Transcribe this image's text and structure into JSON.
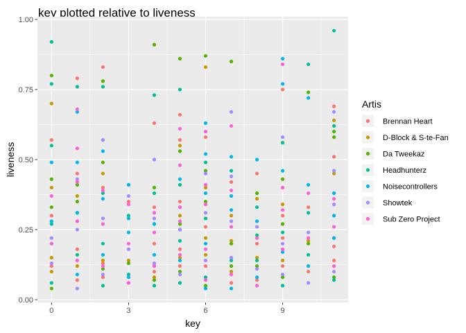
{
  "chart_data": {
    "type": "scatter",
    "title": "key plotted relative to liveness",
    "xlabel": "key",
    "ylabel": "liveness",
    "xlim": [
      -0.55,
      11.55
    ],
    "ylim": [
      -0.01,
      1.01
    ],
    "x_ticks": [
      0,
      3,
      6,
      9
    ],
    "x_tick_labels": [
      "0",
      "3",
      "6",
      "9"
    ],
    "x_minor_ticks": [
      1.5,
      4.5,
      7.5,
      10.5
    ],
    "y_ticks": [
      0.0,
      0.25,
      0.5,
      0.75,
      1.0
    ],
    "y_tick_labels": [
      "0.00",
      "0.25",
      "0.50",
      "0.75",
      "1.00"
    ],
    "y_minor_ticks": [
      0.125,
      0.375,
      0.625,
      0.875
    ],
    "grid": true,
    "legend": {
      "title": "Artis",
      "placement": "right"
    },
    "series": [
      {
        "name": "Brennan Heart",
        "color": "#F8766D",
        "points": [
          [
            0,
            0.57
          ],
          [
            0,
            0.12
          ],
          [
            0,
            0.3
          ],
          [
            1,
            0.79
          ],
          [
            1,
            0.45
          ],
          [
            1,
            0.18
          ],
          [
            1,
            0.07
          ],
          [
            2,
            0.83
          ],
          [
            2,
            0.4
          ],
          [
            2,
            0.13
          ],
          [
            2,
            0.08
          ],
          [
            3,
            0.35
          ],
          [
            3,
            0.06
          ],
          [
            4,
            0.63
          ],
          [
            4,
            0.33
          ],
          [
            4,
            0.2
          ],
          [
            4,
            0.1
          ],
          [
            5,
            0.66
          ],
          [
            5,
            0.57
          ],
          [
            5,
            0.35
          ],
          [
            5,
            0.18
          ],
          [
            5,
            0.12
          ],
          [
            6,
            0.58
          ],
          [
            6,
            0.26
          ],
          [
            6,
            0.12
          ],
          [
            7,
            0.42
          ],
          [
            7,
            0.2
          ],
          [
            7,
            0.06
          ],
          [
            8,
            0.45
          ],
          [
            8,
            0.2
          ],
          [
            8,
            0.07
          ],
          [
            9,
            0.75
          ],
          [
            9,
            0.3
          ],
          [
            9,
            0.22
          ],
          [
            9,
            0.12
          ],
          [
            10,
            0.33
          ],
          [
            10,
            0.1
          ],
          [
            11,
            0.69
          ],
          [
            11,
            0.51
          ],
          [
            11,
            0.19
          ],
          [
            11,
            0.14
          ]
        ]
      },
      {
        "name": "D-Block & S-te-Fan",
        "color": "#C49A00",
        "points": [
          [
            0,
            0.7
          ],
          [
            0,
            0.4
          ],
          [
            0,
            0.15
          ],
          [
            0,
            0.1
          ],
          [
            1,
            0.37
          ],
          [
            1,
            0.12
          ],
          [
            2,
            0.45
          ],
          [
            2,
            0.14
          ],
          [
            3,
            0.14
          ],
          [
            4,
            0.12
          ],
          [
            4,
            0.08
          ],
          [
            5,
            0.55
          ],
          [
            5,
            0.3
          ],
          [
            5,
            0.15
          ],
          [
            6,
            0.83
          ],
          [
            6,
            0.4
          ],
          [
            6,
            0.22
          ],
          [
            6,
            0.16
          ],
          [
            7,
            0.3
          ],
          [
            7,
            0.21
          ],
          [
            7,
            0.1
          ],
          [
            8,
            0.36
          ],
          [
            8,
            0.15
          ],
          [
            9,
            0.34
          ],
          [
            9,
            0.14
          ],
          [
            10,
            0.21
          ],
          [
            11,
            0.64
          ],
          [
            11,
            0.45
          ],
          [
            11,
            0.22
          ]
        ]
      },
      {
        "name": "Da Tweekaz",
        "color": "#53B400",
        "points": [
          [
            0,
            0.8
          ],
          [
            0,
            0.43
          ],
          [
            0,
            0.33
          ],
          [
            0,
            0.04
          ],
          [
            1,
            0.41
          ],
          [
            1,
            0.35
          ],
          [
            2,
            0.78
          ],
          [
            2,
            0.49
          ],
          [
            2,
            0.11
          ],
          [
            3,
            0.13
          ],
          [
            4,
            0.91
          ],
          [
            4,
            0.4
          ],
          [
            4,
            0.07
          ],
          [
            5,
            0.86
          ],
          [
            5,
            0.53
          ],
          [
            5,
            0.27
          ],
          [
            5,
            0.1
          ],
          [
            6,
            0.87
          ],
          [
            6,
            0.46
          ],
          [
            6,
            0.35
          ],
          [
            6,
            0.05
          ],
          [
            7,
            0.85
          ],
          [
            7,
            0.2
          ],
          [
            7,
            0.12
          ],
          [
            8,
            0.38
          ],
          [
            8,
            0.12
          ],
          [
            9,
            0.43
          ],
          [
            9,
            0.27
          ],
          [
            9,
            0.08
          ],
          [
            10,
            0.74
          ],
          [
            10,
            0.2
          ],
          [
            11,
            0.6
          ],
          [
            11,
            0.58
          ],
          [
            11,
            0.08
          ]
        ]
      },
      {
        "name": "Headhunterz",
        "color": "#00C094",
        "points": [
          [
            0,
            0.92
          ],
          [
            0,
            0.77
          ],
          [
            0,
            0.55
          ],
          [
            0,
            0.27
          ],
          [
            0,
            0.06
          ],
          [
            1,
            0.76
          ],
          [
            1,
            0.31
          ],
          [
            1,
            0.16
          ],
          [
            2,
            0.76
          ],
          [
            2,
            0.38
          ],
          [
            2,
            0.2
          ],
          [
            2,
            0.05
          ],
          [
            3,
            0.3
          ],
          [
            3,
            0.09
          ],
          [
            4,
            0.73
          ],
          [
            4,
            0.38
          ],
          [
            4,
            0.27
          ],
          [
            4,
            0.05
          ],
          [
            5,
            0.75
          ],
          [
            5,
            0.41
          ],
          [
            5,
            0.21
          ],
          [
            5,
            0.06
          ],
          [
            6,
            0.49
          ],
          [
            6,
            0.29
          ],
          [
            6,
            0.08
          ],
          [
            7,
            0.46
          ],
          [
            7,
            0.14
          ],
          [
            8,
            0.33
          ],
          [
            8,
            0.23
          ],
          [
            8,
            0.14
          ],
          [
            9,
            0.56
          ],
          [
            9,
            0.24
          ],
          [
            9,
            0.05
          ],
          [
            10,
            0.84
          ],
          [
            10,
            0.31
          ],
          [
            10,
            0.16
          ],
          [
            11,
            0.96
          ],
          [
            11,
            0.62
          ],
          [
            11,
            0.38
          ],
          [
            11,
            0.07
          ]
        ]
      },
      {
        "name": "Noisecontrollers",
        "color": "#00B6EB",
        "points": [
          [
            0,
            0.49
          ],
          [
            0,
            0.28
          ],
          [
            0,
            0.2
          ],
          [
            1,
            0.67
          ],
          [
            1,
            0.49
          ],
          [
            1,
            0.31
          ],
          [
            1,
            0.09
          ],
          [
            2,
            0.53
          ],
          [
            2,
            0.36
          ],
          [
            2,
            0.16
          ],
          [
            3,
            0.41
          ],
          [
            3,
            0.29
          ],
          [
            3,
            0.24
          ],
          [
            3,
            0.08
          ],
          [
            4,
            0.27
          ],
          [
            4,
            0.16
          ],
          [
            5,
            0.43
          ],
          [
            5,
            0.33
          ],
          [
            5,
            0.25
          ],
          [
            5,
            0.14
          ],
          [
            6,
            0.63
          ],
          [
            6,
            0.52
          ],
          [
            6,
            0.38
          ],
          [
            6,
            0.2
          ],
          [
            6,
            0.04
          ],
          [
            7,
            0.51
          ],
          [
            7,
            0.37
          ],
          [
            7,
            0.32
          ],
          [
            7,
            0.04
          ],
          [
            8,
            0.5
          ],
          [
            8,
            0.28
          ],
          [
            8,
            0.08
          ],
          [
            9,
            0.86
          ],
          [
            9,
            0.77
          ],
          [
            9,
            0.46
          ],
          [
            9,
            0.17
          ],
          [
            10,
            0.72
          ],
          [
            10,
            0.41
          ],
          [
            10,
            0.12
          ],
          [
            11,
            0.38
          ],
          [
            11,
            0.3
          ],
          [
            11,
            0.22
          ]
        ]
      },
      {
        "name": "Showtek",
        "color": "#A58AFF",
        "points": [
          [
            0,
            0.22
          ],
          [
            0,
            0.13
          ],
          [
            1,
            0.43
          ],
          [
            1,
            0.25
          ],
          [
            1,
            0.04
          ],
          [
            2,
            0.57
          ],
          [
            2,
            0.29
          ],
          [
            2,
            0.09
          ],
          [
            3,
            0.37
          ],
          [
            3,
            0.18
          ],
          [
            4,
            0.5
          ],
          [
            4,
            0.29
          ],
          [
            4,
            0.13
          ],
          [
            5,
            0.25
          ],
          [
            5,
            0.09
          ],
          [
            6,
            0.45
          ],
          [
            6,
            0.31
          ],
          [
            6,
            0.14
          ],
          [
            7,
            0.67
          ],
          [
            7,
            0.44
          ],
          [
            7,
            0.28
          ],
          [
            7,
            0.15
          ],
          [
            8,
            0.26
          ],
          [
            8,
            0.11
          ],
          [
            9,
            0.58
          ],
          [
            9,
            0.2
          ],
          [
            9,
            0.09
          ],
          [
            10,
            0.24
          ],
          [
            10,
            0.06
          ],
          [
            11,
            0.67
          ],
          [
            11,
            0.46
          ],
          [
            11,
            0.34
          ],
          [
            11,
            0.1
          ]
        ]
      },
      {
        "name": "Sub Zero Project",
        "color": "#FB61D7",
        "points": [
          [
            0,
            0.37
          ],
          [
            0,
            0.2
          ],
          [
            1,
            0.68
          ],
          [
            1,
            0.54
          ],
          [
            1,
            0.42
          ],
          [
            1,
            0.28
          ],
          [
            1,
            0.14
          ],
          [
            2,
            0.39
          ],
          [
            2,
            0.27
          ],
          [
            2,
            0.12
          ],
          [
            3,
            0.34
          ],
          [
            3,
            0.2
          ],
          [
            3,
            0.06
          ],
          [
            4,
            0.31
          ],
          [
            4,
            0.24
          ],
          [
            4,
            0.12
          ],
          [
            5,
            0.61
          ],
          [
            5,
            0.48
          ],
          [
            5,
            0.33
          ],
          [
            5,
            0.28
          ],
          [
            5,
            0.16
          ],
          [
            6,
            0.6
          ],
          [
            6,
            0.41
          ],
          [
            6,
            0.34
          ],
          [
            6,
            0.18
          ],
          [
            6,
            0.07
          ],
          [
            7,
            0.62
          ],
          [
            7,
            0.39
          ],
          [
            7,
            0.26
          ],
          [
            7,
            0.09
          ],
          [
            8,
            0.22
          ],
          [
            8,
            0.05
          ],
          [
            9,
            0.84
          ],
          [
            9,
            0.4
          ],
          [
            9,
            0.32
          ],
          [
            9,
            0.18
          ],
          [
            10,
            0.38
          ],
          [
            10,
            0.22
          ],
          [
            11,
            0.36
          ],
          [
            11,
            0.26
          ],
          [
            11,
            0.12
          ]
        ]
      }
    ]
  }
}
